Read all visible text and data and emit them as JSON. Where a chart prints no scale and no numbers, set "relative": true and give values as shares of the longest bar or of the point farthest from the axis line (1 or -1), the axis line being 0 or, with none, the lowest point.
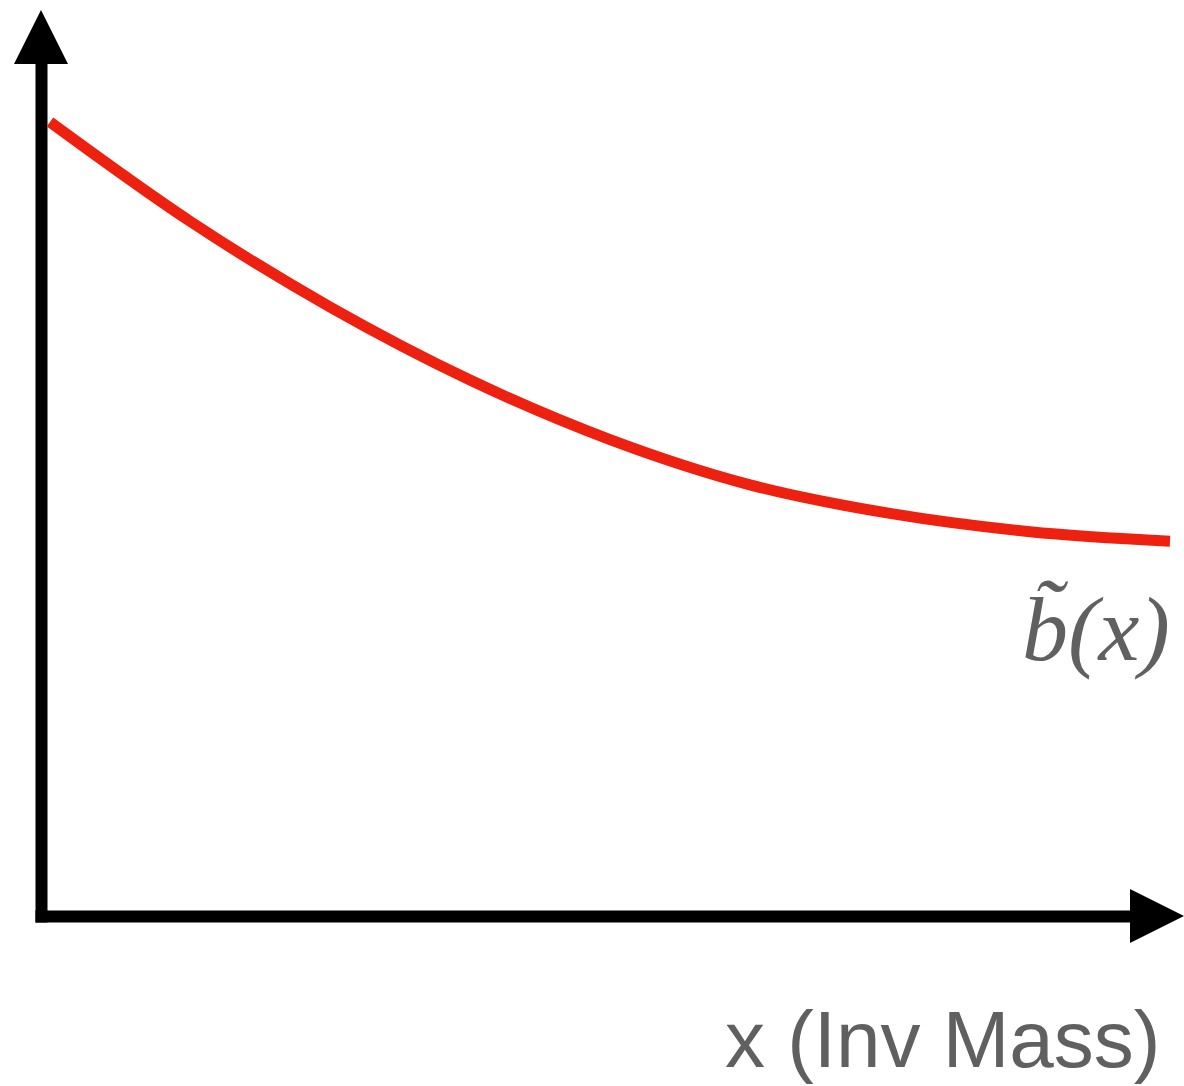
{
  "chart_data": {
    "type": "line",
    "relative": true,
    "xlabel": "x (Inv Mass)",
    "categories": [
      null,
      null,
      null,
      null,
      null,
      null,
      null,
      null,
      null
    ],
    "series": [
      {
        "name": "b̃(x)",
        "color": "#ee2010",
        "values": [
          1,
          0.875,
          0.767,
          0.675,
          0.6,
          0.543,
          0.507,
          0.484,
          0.472
        ]
      }
    ]
  }
}
